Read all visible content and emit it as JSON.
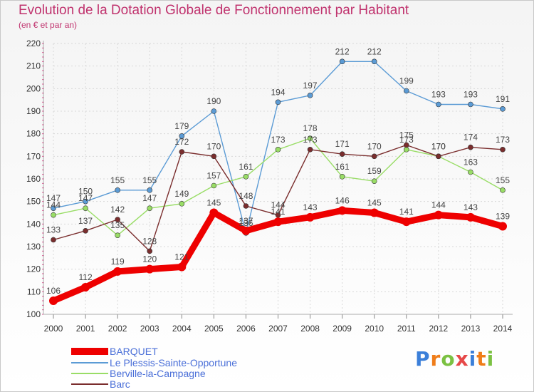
{
  "title": "Evolution de la Dotation Globale de Fonctionnement par Habitant",
  "subtitle": "(en € et par an)",
  "chart_data": {
    "type": "line",
    "title": "Evolution de la Dotation Globale de Fonctionnement par Habitant",
    "subtitle": "(en € et par an)",
    "x": [
      "2000",
      "2001",
      "2002",
      "2003",
      "2004",
      "2005",
      "2006",
      "2007",
      "2008",
      "2009",
      "2010",
      "2011",
      "2012",
      "2013",
      "2014"
    ],
    "ylim": [
      100,
      220
    ],
    "yticks": [
      100,
      110,
      120,
      130,
      140,
      150,
      160,
      170,
      180,
      190,
      200,
      210,
      220
    ],
    "grid": true,
    "legend_position": "bottom-left",
    "series": [
      {
        "name": "BARQUET",
        "color": "#ee0000",
        "values": [
          106,
          112,
          119,
          120,
          121,
          145,
          137,
          141,
          143,
          146,
          145,
          141,
          144,
          143,
          139
        ]
      },
      {
        "name": "Le Plessis-Sainte-Opportune",
        "color": "#5b9bd5",
        "values": [
          147,
          150,
          155,
          155,
          179,
          190,
          136,
          194,
          197,
          212,
          212,
          199,
          193,
          193,
          191
        ]
      },
      {
        "name": "Berville-la-Campagne",
        "color": "#99dd66",
        "values": [
          144,
          147,
          135,
          147,
          149,
          157,
          161,
          173,
          178,
          161,
          159,
          173,
          170,
          163,
          155
        ]
      },
      {
        "name": "Barc",
        "color": "#7a2d2d",
        "values": [
          133,
          137,
          142,
          128,
          172,
          170,
          148,
          144,
          173,
          171,
          170,
          175,
          170,
          174,
          173
        ]
      }
    ]
  },
  "logo": {
    "letters": [
      "P",
      "r",
      "o",
      "x",
      "i",
      "t",
      "i"
    ],
    "colors": [
      "#3b7fd9",
      "#ef7d1a",
      "#7bc142",
      "#e64848",
      "#3b7fd9",
      "#ef7d1a",
      "#7bc142"
    ]
  }
}
